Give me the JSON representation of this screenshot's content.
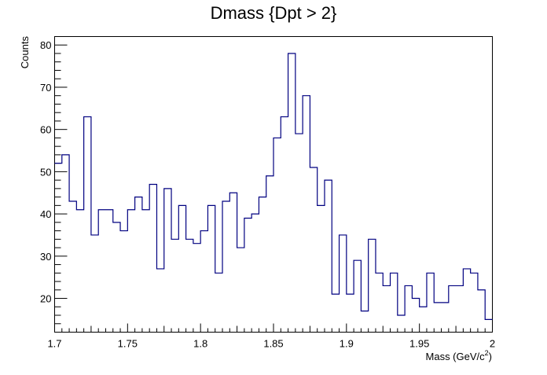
{
  "chart_data": {
    "type": "bar",
    "title": "Dmass {Dpt > 2}",
    "xlabel": "Mass (GeV/c",
    "xlabel_sup": "2",
    "xlabel_close": ")",
    "ylabel": "Counts",
    "xlim": [
      1.7,
      2.0
    ],
    "ylim": [
      12,
      82
    ],
    "bin_width": 0.005,
    "bin_start": 1.7,
    "x_ticks": [
      "1.7",
      "1.75",
      "1.8",
      "1.85",
      "1.9",
      "1.95",
      "2"
    ],
    "x_tick_values": [
      1.7,
      1.75,
      1.8,
      1.85,
      1.9,
      1.95,
      2.0
    ],
    "y_ticks": [
      "20",
      "30",
      "40",
      "50",
      "60",
      "70",
      "80"
    ],
    "y_tick_values": [
      20,
      30,
      40,
      50,
      60,
      70,
      80
    ],
    "values": [
      52,
      54,
      43,
      41,
      63,
      35,
      41,
      41,
      38,
      36,
      41,
      44,
      41,
      47,
      27,
      46,
      34,
      42,
      34,
      33,
      36,
      42,
      26,
      43,
      45,
      32,
      39,
      40,
      44,
      49,
      58,
      63,
      78,
      59,
      68,
      51,
      42,
      48,
      21,
      35,
      21,
      29,
      17,
      34,
      26,
      23,
      26,
      16,
      23,
      20,
      18,
      26,
      19,
      19,
      23,
      23,
      27,
      26,
      22,
      15
    ],
    "line_color": "#000080",
    "grid": false,
    "legend": "none"
  }
}
